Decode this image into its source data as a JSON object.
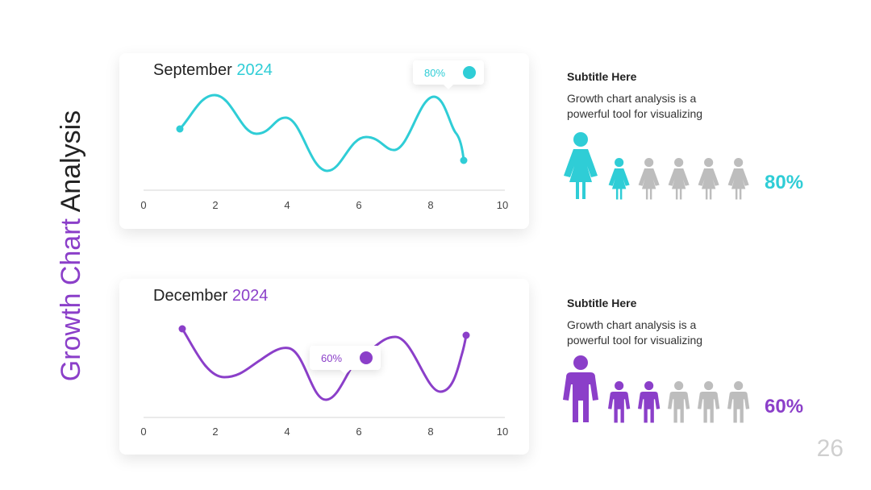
{
  "title": {
    "part1": "Growth Chart",
    "part2": " Analysis"
  },
  "colors": {
    "teal": "#2fcdd6",
    "purple": "#8b3fc9",
    "gray": "#bdbdbd",
    "dark": "#222222"
  },
  "charts": [
    {
      "title_month": "September",
      "title_year": "2024",
      "tooltip_value": "80%",
      "icon": "chevron-up-icon",
      "x_ticks": [
        "0",
        "2",
        "4",
        "6",
        "8",
        "10"
      ]
    },
    {
      "title_month": "December",
      "title_year": "2024",
      "tooltip_value": "60%",
      "icon": "chevron-up-icon",
      "x_ticks": [
        "0",
        "2",
        "4",
        "6",
        "8",
        "10"
      ]
    }
  ],
  "chart_data": [
    {
      "type": "line",
      "x": [
        1,
        2,
        3,
        4,
        5,
        6,
        7,
        8,
        9
      ],
      "xlim": [
        0,
        10
      ],
      "y_relative": [
        0.55,
        0.78,
        0.48,
        0.62,
        0.15,
        0.45,
        0.35,
        0.8,
        0.28
      ]
    },
    {
      "type": "line",
      "x": [
        1,
        2,
        3,
        4,
        5,
        6,
        7,
        8,
        9
      ],
      "xlim": [
        0,
        10
      ],
      "y_relative": [
        0.8,
        0.35,
        0.48,
        0.62,
        0.15,
        0.45,
        0.65,
        0.2,
        0.72
      ]
    }
  ],
  "infos": [
    {
      "subtitle": "Subtitle Here",
      "text": "Growth chart analysis is a powerful tool for visualizing",
      "percent": "80%",
      "filled": 2,
      "total": 6
    },
    {
      "subtitle": "Subtitle Here",
      "text": "Growth chart analysis is a powerful tool for visualizing",
      "percent": "60%",
      "filled": 3,
      "total": 6
    }
  ],
  "page_number": "26"
}
